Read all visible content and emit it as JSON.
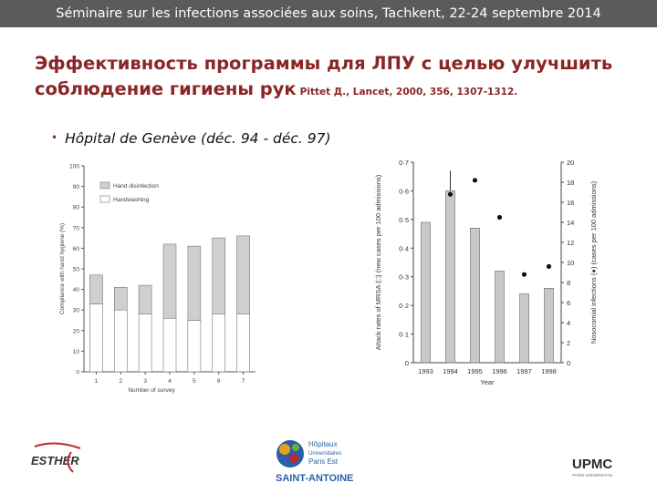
{
  "header": {
    "banner": "Séminaire sur les infections associées aux soins, Tachkent, 22-24 septembre 2014"
  },
  "slide": {
    "title_line1": "Эффективность программы для ЛПУ с целью улучшить",
    "title_line2": "соблюдение гигиены рук",
    "citation": "Pittet Д., Lancet, 2000, 356, 1307-1312.",
    "bullet": "Hôpital de Genève (déc. 94 - déc. 97)"
  },
  "chart_data": [
    {
      "type": "bar",
      "stacked": true,
      "categories": [
        "1",
        "2",
        "3",
        "4",
        "5",
        "6",
        "7"
      ],
      "series": [
        {
          "name": "Handwashing",
          "values": [
            33,
            30,
            28,
            26,
            25,
            28,
            28
          ],
          "color": "#ffffff"
        },
        {
          "name": "Hand disinfection",
          "values": [
            14,
            11,
            14,
            36,
            36,
            37,
            38
          ],
          "color": "#cfcfcf"
        }
      ],
      "xlabel": "Number of survey",
      "ylabel": "Compliance with hand hygiene (%)",
      "ylim": [
        0,
        100
      ],
      "yticks": [
        "0",
        "10",
        "20",
        "30",
        "40",
        "50",
        "60",
        "70",
        "80",
        "90",
        "100"
      ],
      "legend": "top-left"
    },
    {
      "type": "bar",
      "categories": [
        "1993",
        "1994",
        "1995",
        "1996",
        "1997",
        "1998"
      ],
      "bars": {
        "values": [
          0.49,
          0.6,
          0.47,
          0.32,
          0.24,
          0.26
        ],
        "error": [
          0.0,
          0.07,
          0.0,
          0.0,
          0.0,
          0.0
        ],
        "color": "#c8c8c8"
      },
      "points": {
        "values": [
          null,
          16.8,
          18.2,
          14.5,
          8.8,
          9.6
        ],
        "error": [
          null,
          0,
          0,
          0,
          0,
          0
        ]
      },
      "xlabel": "Year",
      "ylabel_left": "Attack rates of MRSA (□) (new cases per 100 admissions)",
      "ylabel_right": "Nosocomial infections (●) (cases per 100 admissions)",
      "ylim_left": [
        0,
        0.7
      ],
      "ylim_right": [
        0,
        20
      ],
      "yticks_left": [
        "0",
        "0·1",
        "0·2",
        "0·3",
        "0·4",
        "0·5",
        "0·6",
        "0·7"
      ],
      "yticks_right": [
        "0",
        "2",
        "4",
        "6",
        "8",
        "10",
        "12",
        "14",
        "16",
        "18",
        "20"
      ]
    }
  ],
  "logos": {
    "esther": "ESTHER",
    "hopitaux_line1": "Hôpitaux",
    "hopitaux_line2": "Universitaires",
    "hopitaux_line3": "Paris Est",
    "saint_antoine": "SAINT-ANTOINE",
    "upmc": "UPMC",
    "upmc_sub": "PARIS UNIVERSITAS"
  }
}
